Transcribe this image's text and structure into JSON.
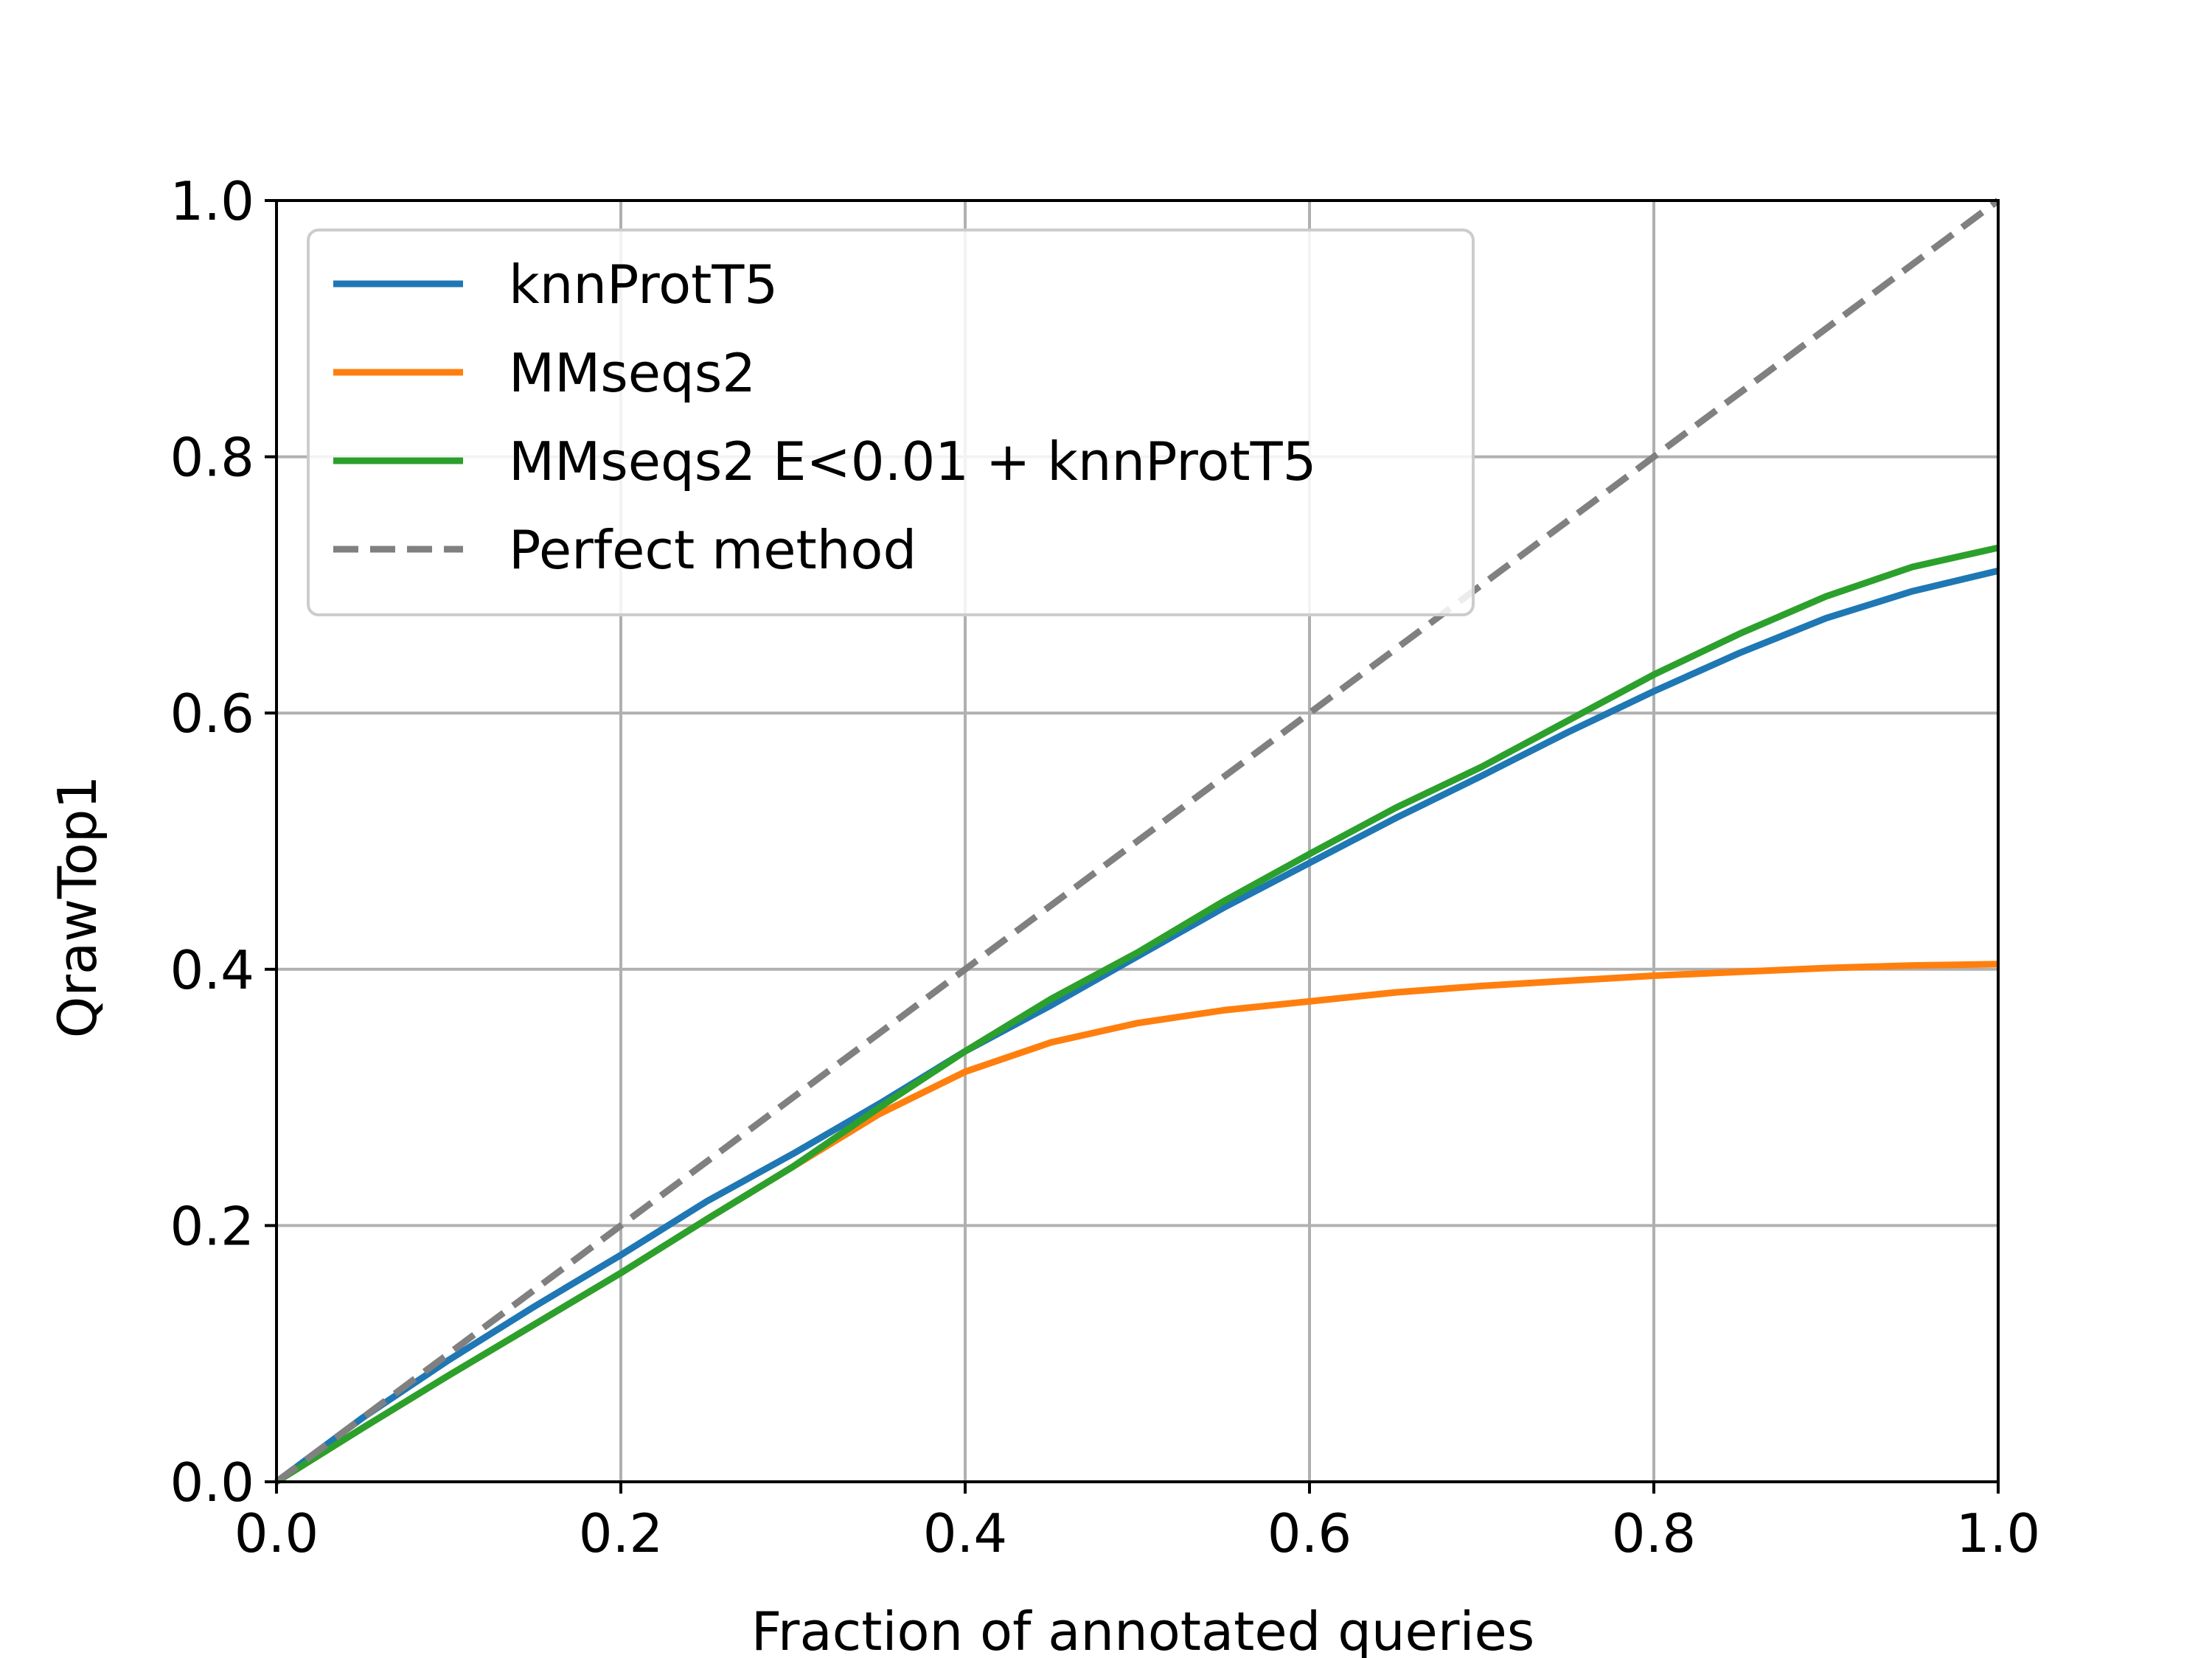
{
  "chart_data": {
    "type": "line",
    "title": "",
    "xlabel": "Fraction of annotated queries",
    "ylabel": "QrawTop1",
    "xlim": [
      0.0,
      1.0
    ],
    "ylim": [
      0.0,
      1.0
    ],
    "x_ticks": [
      "0.0",
      "0.2",
      "0.4",
      "0.6",
      "0.8",
      "1.0"
    ],
    "y_ticks": [
      "0.0",
      "0.2",
      "0.4",
      "0.6",
      "0.8",
      "1.0"
    ],
    "grid": true,
    "legend_position": "upper-left",
    "series": [
      {
        "name": "knnProtT5",
        "color": "#1f77b4",
        "style": "solid",
        "x": [
          0.0,
          0.05,
          0.1,
          0.15,
          0.2,
          0.25,
          0.3,
          0.35,
          0.4,
          0.45,
          0.5,
          0.55,
          0.6,
          0.65,
          0.7,
          0.75,
          0.8,
          0.85,
          0.9,
          0.95,
          1.0
        ],
        "y": [
          0.0,
          0.05,
          0.095,
          0.137,
          0.177,
          0.219,
          0.256,
          0.295,
          0.336,
          0.372,
          0.41,
          0.448,
          0.483,
          0.518,
          0.551,
          0.585,
          0.617,
          0.647,
          0.674,
          0.695,
          0.711
        ]
      },
      {
        "name": "MMseqs2",
        "color": "#ff7f0e",
        "style": "solid",
        "x": [
          0.0,
          0.05,
          0.1,
          0.15,
          0.2,
          0.25,
          0.3,
          0.35,
          0.4,
          0.45,
          0.5,
          0.55,
          0.6,
          0.65,
          0.7,
          0.75,
          0.8,
          0.85,
          0.9,
          0.95,
          1.0
        ],
        "y": [
          0.0,
          0.042,
          0.083,
          0.123,
          0.163,
          0.205,
          0.246,
          0.287,
          0.32,
          0.343,
          0.358,
          0.368,
          0.375,
          0.382,
          0.387,
          0.391,
          0.395,
          0.398,
          0.401,
          0.403,
          0.404
        ]
      },
      {
        "name": "MMseqs2 E<0.01 + knnProtT5",
        "color": "#2ca02c",
        "style": "solid",
        "x": [
          0.0,
          0.05,
          0.1,
          0.15,
          0.2,
          0.25,
          0.3,
          0.35,
          0.4,
          0.45,
          0.5,
          0.55,
          0.6,
          0.65,
          0.7,
          0.75,
          0.8,
          0.85,
          0.9,
          0.95,
          1.0
        ],
        "y": [
          0.0,
          0.042,
          0.083,
          0.123,
          0.163,
          0.205,
          0.246,
          0.292,
          0.336,
          0.377,
          0.413,
          0.453,
          0.49,
          0.526,
          0.558,
          0.594,
          0.63,
          0.662,
          0.691,
          0.714,
          0.729
        ]
      },
      {
        "name": "Perfect method",
        "color": "#808080",
        "style": "dashed",
        "x": [
          0.0,
          1.0
        ],
        "y": [
          0.0,
          1.0
        ]
      }
    ]
  }
}
